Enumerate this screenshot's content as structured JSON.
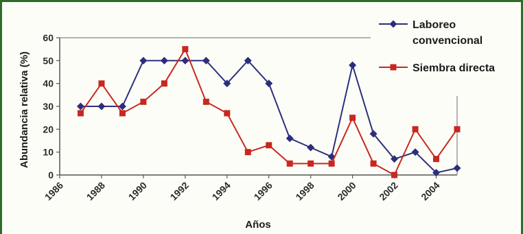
{
  "chart_data": {
    "type": "line",
    "title": "",
    "xlabel": "Años",
    "ylabel": "Abundancia relativa (%)",
    "ylim": [
      0,
      60
    ],
    "yticks": [
      "0",
      "10",
      "20",
      "30",
      "40",
      "50",
      "60"
    ],
    "xlim": [
      1986,
      2005
    ],
    "xticks": [
      "1986",
      "1988",
      "1990",
      "1992",
      "1994",
      "1996",
      "1998",
      "2000",
      "2002",
      "2004"
    ],
    "legend_position": "top-right",
    "series": [
      {
        "name": "Laboreo convencional",
        "name_lines": [
          "Laboreo",
          "convencional"
        ],
        "color": "#2b2f7a",
        "marker": "diamond",
        "x": [
          1987,
          1988,
          1989,
          1990,
          1991,
          1992,
          1993,
          1994,
          1995,
          1996,
          1997,
          1998,
          1999,
          2000,
          2001,
          2002,
          2003,
          2004,
          2005
        ],
        "values": [
          30,
          30,
          30,
          50,
          50,
          50,
          50,
          40,
          50,
          40,
          16,
          12,
          8,
          48,
          18,
          7,
          10,
          1,
          3
        ]
      },
      {
        "name": "Siembra directa",
        "name_lines": [
          "Siembra directa"
        ],
        "color": "#c8281e",
        "marker": "square",
        "x": [
          1987,
          1988,
          1989,
          1990,
          1991,
          1992,
          1993,
          1994,
          1995,
          1996,
          1997,
          1998,
          1999,
          2000,
          2001,
          2002,
          2003,
          2004,
          2005
        ],
        "values": [
          27,
          40,
          27,
          32,
          40,
          55,
          32,
          27,
          10,
          13,
          5,
          5,
          5,
          25,
          5,
          0,
          20,
          7,
          20
        ]
      }
    ]
  }
}
